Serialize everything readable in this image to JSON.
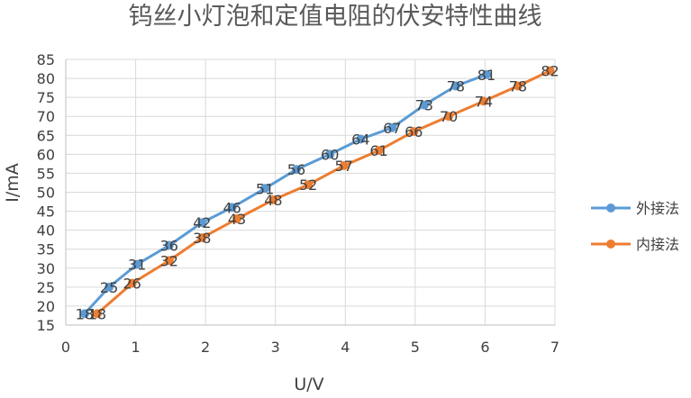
{
  "chart_data": {
    "type": "line",
    "title": "钨丝小灯泡和定值电阻的伏安特性曲线",
    "xlabel": "U/V",
    "ylabel": "I/mA",
    "xlim": [
      0,
      7
    ],
    "ylim": [
      15,
      85
    ],
    "xticks": [
      0,
      1,
      2,
      3,
      4,
      5,
      6,
      7
    ],
    "yticks": [
      15,
      20,
      25,
      30,
      35,
      40,
      45,
      50,
      55,
      60,
      65,
      70,
      75,
      80,
      85
    ],
    "grid": true,
    "legend_position": "right",
    "series": [
      {
        "name": "外接法",
        "color": "#5B9BD5",
        "marker": "circle",
        "points": [
          {
            "x": 0.27,
            "y": 18
          },
          {
            "x": 0.62,
            "y": 25
          },
          {
            "x": 1.02,
            "y": 31
          },
          {
            "x": 1.48,
            "y": 36
          },
          {
            "x": 1.95,
            "y": 42
          },
          {
            "x": 2.38,
            "y": 46
          },
          {
            "x": 2.85,
            "y": 51
          },
          {
            "x": 3.3,
            "y": 56
          },
          {
            "x": 3.78,
            "y": 60
          },
          {
            "x": 4.22,
            "y": 64
          },
          {
            "x": 4.67,
            "y": 67
          },
          {
            "x": 5.13,
            "y": 73
          },
          {
            "x": 5.58,
            "y": 78
          },
          {
            "x": 6.02,
            "y": 81
          }
        ]
      },
      {
        "name": "内接法",
        "color": "#ED7D31",
        "marker": "circle",
        "points": [
          {
            "x": 0.45,
            "y": 18
          },
          {
            "x": 0.95,
            "y": 26
          },
          {
            "x": 1.48,
            "y": 32
          },
          {
            "x": 1.95,
            "y": 38
          },
          {
            "x": 2.45,
            "y": 43
          },
          {
            "x": 2.97,
            "y": 48
          },
          {
            "x": 3.47,
            "y": 52
          },
          {
            "x": 3.98,
            "y": 57
          },
          {
            "x": 4.48,
            "y": 61
          },
          {
            "x": 4.98,
            "y": 66
          },
          {
            "x": 5.48,
            "y": 70
          },
          {
            "x": 5.98,
            "y": 74
          },
          {
            "x": 6.47,
            "y": 78
          },
          {
            "x": 6.93,
            "y": 82
          }
        ]
      }
    ]
  }
}
